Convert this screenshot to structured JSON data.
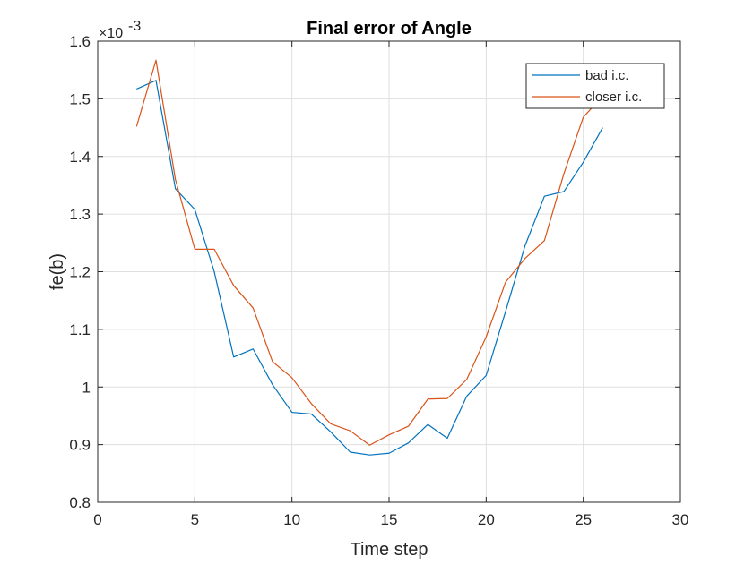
{
  "chart_data": {
    "type": "line",
    "title": "Final error of Angle",
    "xlabel": "Time step",
    "ylabel": "fe(b)",
    "y_multiplier": "×10",
    "y_exponent": "-3",
    "xlim": [
      0,
      30
    ],
    "ylim": [
      0.8,
      1.6
    ],
    "xticks": [
      0,
      5,
      10,
      15,
      20,
      25,
      30
    ],
    "yticks": [
      0.8,
      0.9,
      1.0,
      1.1,
      1.2,
      1.3,
      1.4,
      1.5,
      1.6
    ],
    "xtick_labels": [
      "0",
      "5",
      "10",
      "15",
      "20",
      "25",
      "30"
    ],
    "ytick_labels": [
      "0.8",
      "0.9",
      "1",
      "1.1",
      "1.2",
      "1.3",
      "1.4",
      "1.5",
      "1.6"
    ],
    "grid": true,
    "legend_position": "top-right",
    "series": [
      {
        "name": "bad i.c.",
        "color": "#0072BD",
        "x": [
          2,
          3,
          4,
          5,
          6,
          7,
          8,
          9,
          10,
          11,
          12,
          13,
          14,
          15,
          16,
          17,
          18,
          19,
          20,
          21,
          22,
          23,
          24,
          25,
          26
        ],
        "y": [
          1.517,
          1.532,
          1.344,
          1.308,
          1.2,
          1.052,
          1.066,
          1.004,
          0.956,
          0.953,
          0.922,
          0.887,
          0.882,
          0.885,
          0.903,
          0.935,
          0.911,
          0.984,
          1.02,
          1.131,
          1.245,
          1.331,
          1.339,
          1.39,
          1.45
        ]
      },
      {
        "name": "closer i.c.",
        "color": "#D95319",
        "x": [
          2,
          3,
          4,
          5,
          6,
          7,
          8,
          9,
          10,
          11,
          12,
          13,
          14,
          15,
          16,
          17,
          18,
          19,
          20,
          21,
          22,
          23,
          24,
          25,
          26
        ],
        "y": [
          1.452,
          1.567,
          1.36,
          1.239,
          1.239,
          1.176,
          1.137,
          1.044,
          1.016,
          0.971,
          0.936,
          0.924,
          0.899,
          0.917,
          0.932,
          0.979,
          0.98,
          1.013,
          1.087,
          1.182,
          1.223,
          1.254,
          1.37,
          1.468,
          1.505
        ]
      }
    ]
  }
}
